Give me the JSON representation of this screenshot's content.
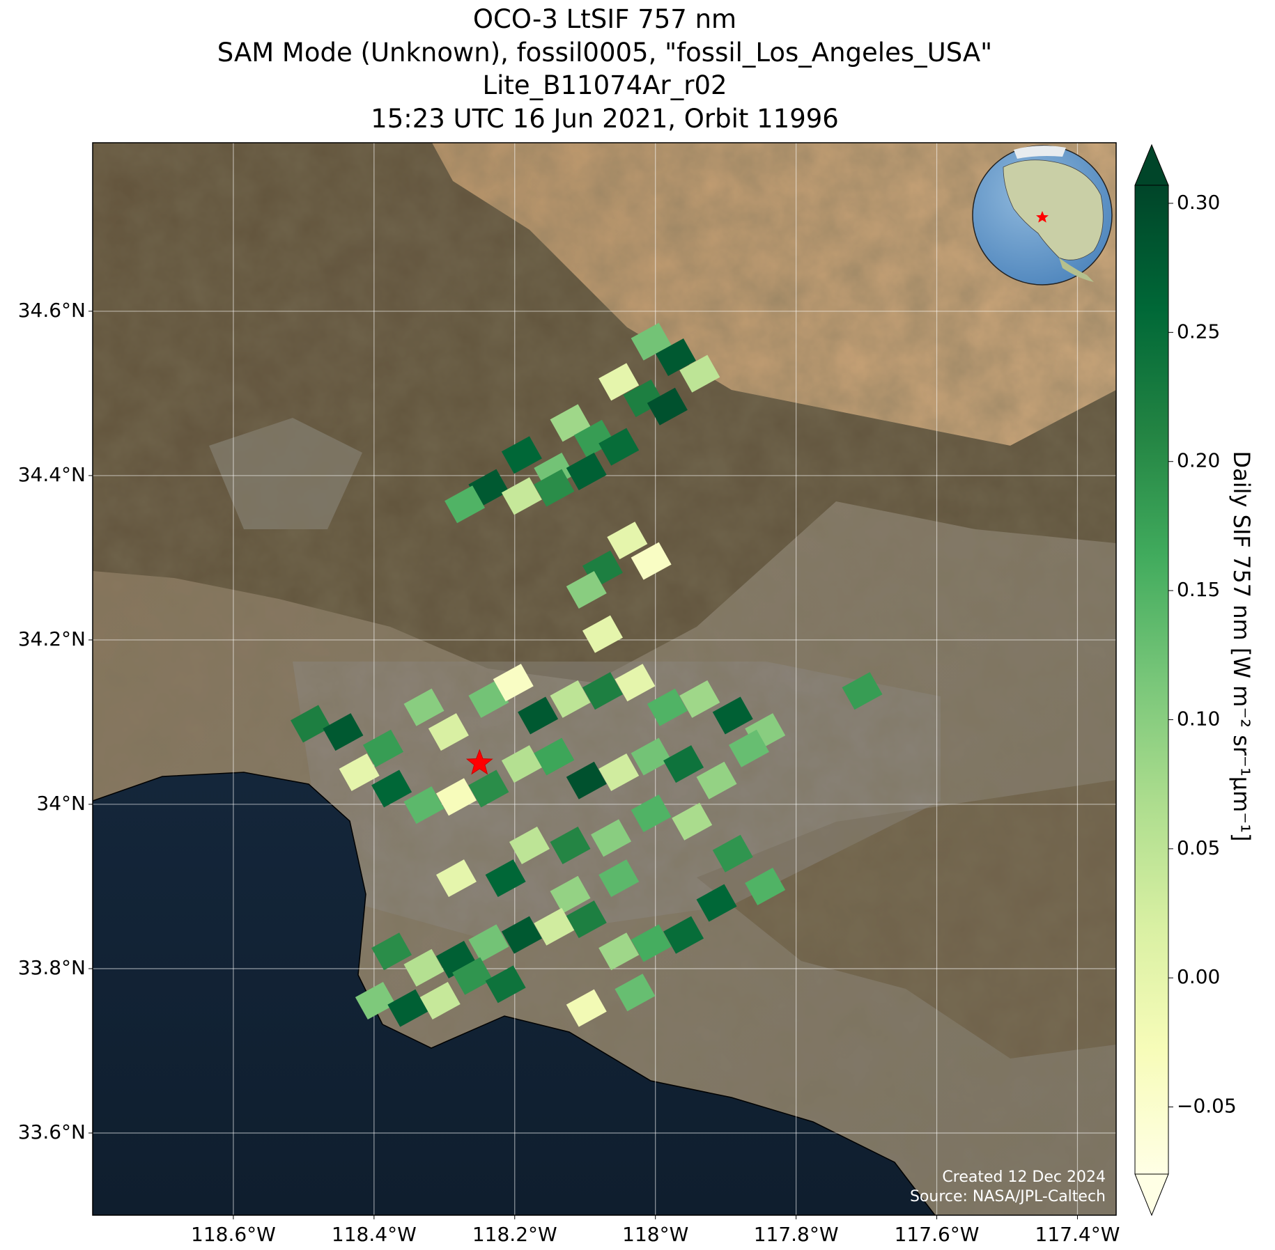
{
  "chart_data": {
    "type": "map",
    "title": [
      "OCO-3 LtSIF 757 nm",
      "SAM Mode (Unknown), fossil0005, \"fossil_Los_Angeles_USA\"",
      "Lite_B11074Ar_r02",
      "15:23 UTC 16 Jun 2021, Orbit 11996"
    ],
    "xlim": [
      -118.8,
      -117.345
    ],
    "ylim": [
      33.5,
      34.805
    ],
    "xticks": [
      {
        "value": -118.6,
        "label": "118.6°W"
      },
      {
        "value": -118.4,
        "label": "118.4°W"
      },
      {
        "value": -118.2,
        "label": "118.2°W"
      },
      {
        "value": -118.0,
        "label": "118°W"
      },
      {
        "value": -117.8,
        "label": "117.8°W"
      },
      {
        "value": -117.6,
        "label": "117.6°W"
      },
      {
        "value": -117.4,
        "label": "117.4°W"
      }
    ],
    "yticks": [
      {
        "value": 33.6,
        "label": "33.6°N"
      },
      {
        "value": 33.8,
        "label": "33.8°N"
      },
      {
        "value": 34.0,
        "label": "34°N"
      },
      {
        "value": 34.2,
        "label": "34.2°N"
      },
      {
        "value": 34.4,
        "label": "34.4°N"
      },
      {
        "value": 34.6,
        "label": "34.6°N"
      }
    ],
    "grid": true,
    "footprints": {
      "lon": [
        -118.006,
        -117.971,
        -117.937,
        -118.052,
        -118.017,
        -117.983,
        -118.121,
        -118.087,
        -118.052,
        -118.19,
        -118.144,
        -118.098,
        -118.237,
        -118.19,
        -118.144,
        -118.271,
        -118.04,
        -118.006,
        -118.075,
        -118.098,
        -118.075,
        -118.49,
        -118.444,
        -118.387,
        -118.329,
        -118.294,
        -118.237,
        -118.202,
        -118.167,
        -118.121,
        -118.075,
        -118.029,
        -117.983,
        -117.937,
        -117.89,
        -117.844,
        -118.421,
        -118.375,
        -118.329,
        -118.283,
        -118.237,
        -118.19,
        -118.144,
        -118.098,
        -118.052,
        -118.006,
        -117.96,
        -117.913,
        -117.867,
        -117.706,
        -118.179,
        -118.121,
        -118.063,
        -118.006,
        -117.948,
        -117.89,
        -118.283,
        -118.213,
        -118.121,
        -118.052,
        -118.375,
        -118.329,
        -118.283,
        -118.237,
        -118.19,
        -118.144,
        -118.098,
        -118.052,
        -118.006,
        -117.96,
        -118.398,
        -118.352,
        -118.306,
        -118.26,
        -118.213,
        -118.098,
        -118.029,
        -117.913,
        -117.844
      ],
      "lat": [
        34.563,
        34.544,
        34.524,
        34.514,
        34.494,
        34.484,
        34.464,
        34.445,
        34.435,
        34.425,
        34.405,
        34.405,
        34.385,
        34.375,
        34.385,
        34.365,
        34.321,
        34.296,
        34.286,
        34.261,
        34.207,
        34.098,
        34.088,
        34.068,
        34.118,
        34.088,
        34.128,
        34.148,
        34.108,
        34.128,
        34.138,
        34.148,
        34.118,
        34.128,
        34.108,
        34.088,
        34.039,
        34.019,
        33.999,
        34.009,
        34.019,
        34.049,
        34.058,
        34.029,
        34.039,
        34.058,
        34.049,
        34.029,
        34.068,
        34.138,
        33.95,
        33.95,
        33.959,
        33.989,
        33.979,
        33.94,
        33.91,
        33.91,
        33.89,
        33.91,
        33.821,
        33.801,
        33.811,
        33.831,
        33.841,
        33.851,
        33.86,
        33.821,
        33.831,
        33.841,
        33.761,
        33.752,
        33.761,
        33.791,
        33.781,
        33.752,
        33.771,
        33.88,
        33.9
      ],
      "values": [
        0.12,
        0.28,
        0.05,
        0.0,
        0.22,
        0.29,
        0.08,
        0.18,
        0.25,
        0.26,
        0.12,
        0.27,
        0.28,
        0.04,
        0.2,
        0.15,
        0.0,
        -0.04,
        0.22,
        0.1,
        0.0,
        0.22,
        0.28,
        0.18,
        0.1,
        0.02,
        0.12,
        -0.04,
        0.28,
        0.05,
        0.22,
        0.0,
        0.15,
        0.08,
        0.27,
        0.1,
        0.0,
        0.26,
        0.14,
        -0.03,
        0.2,
        0.06,
        0.17,
        0.29,
        0.03,
        0.12,
        0.24,
        0.09,
        0.13,
        0.18,
        0.05,
        0.21,
        0.1,
        0.15,
        0.07,
        0.19,
        0.0,
        0.26,
        0.09,
        0.14,
        0.2,
        0.06,
        0.27,
        0.12,
        0.28,
        0.03,
        0.22,
        0.08,
        0.16,
        0.25,
        0.11,
        0.27,
        0.04,
        0.19,
        0.24,
        -0.02,
        0.13,
        0.26,
        0.15
      ]
    },
    "target": {
      "lon": -118.25,
      "lat": 34.05
    },
    "colorbar": {
      "label": "Daily SIF 757 nm [W m⁻² sr⁻¹µm⁻¹]",
      "lim": [
        -0.076,
        0.307
      ],
      "ticks": [
        {
          "value": 0.3,
          "label": "0.30"
        },
        {
          "value": 0.25,
          "label": "0.25"
        },
        {
          "value": 0.2,
          "label": "0.20"
        },
        {
          "value": 0.15,
          "label": "0.15"
        },
        {
          "value": 0.1,
          "label": "0.10"
        },
        {
          "value": 0.05,
          "label": "0.05"
        },
        {
          "value": 0.0,
          "label": "0.00"
        },
        {
          "value": -0.05,
          "label": "−0.05"
        }
      ],
      "colormap": [
        "#ffffe5",
        "#f7fcb9",
        "#d9f0a3",
        "#addd8e",
        "#78c679",
        "#41ab5d",
        "#238443",
        "#006837",
        "#004529"
      ],
      "extend": "both"
    },
    "credits": [
      "Created 12 Dec 2024",
      "Source: NASA/JPL-Caltech"
    ]
  }
}
